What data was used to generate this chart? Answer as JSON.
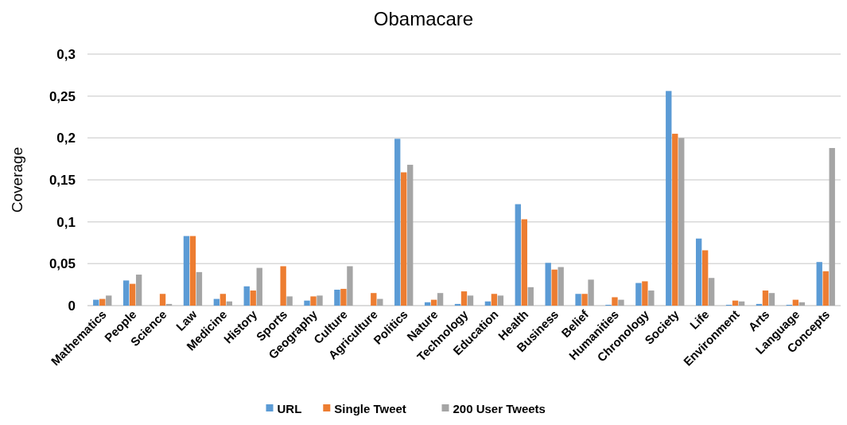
{
  "chart_data": {
    "type": "bar",
    "title": "Obamacare",
    "ylabel": "Coverage",
    "categories": [
      "Mathematics",
      "People",
      "Science",
      "Law",
      "Medicine",
      "History",
      "Sports",
      "Geography",
      "Culture",
      "Agriculture",
      "Politics",
      "Nature",
      "Technology",
      "Education",
      "Health",
      "Business",
      "Belief",
      "Humanities",
      "Chronology",
      "Society",
      "Life",
      "Environment",
      "Arts",
      "Language",
      "Concepts"
    ],
    "series": [
      {
        "name": "URL",
        "color": "#5b9bd5",
        "values": [
          0.007,
          0.03,
          0,
          0.083,
          0.008,
          0.023,
          0,
          0.006,
          0.019,
          0,
          0.199,
          0.004,
          0.002,
          0.005,
          0.121,
          0.051,
          0.014,
          0.001,
          0.027,
          0.256,
          0.08,
          0.001,
          0.002,
          0.001,
          0.052
        ]
      },
      {
        "name": "Single Tweet",
        "color": "#ed7d31",
        "values": [
          0.008,
          0.026,
          0.014,
          0.083,
          0.014,
          0.018,
          0.047,
          0.011,
          0.02,
          0.015,
          0.159,
          0.007,
          0.017,
          0.014,
          0.103,
          0.043,
          0.014,
          0.01,
          0.029,
          0.205,
          0.066,
          0.006,
          0.018,
          0.007,
          0.041
        ]
      },
      {
        "name": "200 User Tweets",
        "color": "#a5a5a5",
        "values": [
          0.012,
          0.037,
          0.002,
          0.04,
          0.005,
          0.045,
          0.011,
          0.012,
          0.047,
          0.008,
          0.168,
          0.015,
          0.012,
          0.012,
          0.022,
          0.046,
          0.031,
          0.007,
          0.018,
          0.2,
          0.033,
          0.005,
          0.015,
          0.004,
          0.188
        ]
      }
    ],
    "ylim": [
      0,
      0.3
    ],
    "yticks": [
      0,
      {
        "value": 0.05,
        "label": "0,05"
      },
      {
        "value": 0.1,
        "label": "0,1"
      },
      {
        "value": 0.15,
        "label": "0,15"
      },
      {
        "value": 0.2,
        "label": "0,2"
      },
      {
        "value": 0.25,
        "label": "0,25"
      },
      {
        "value": 0.3,
        "label": "0,3"
      }
    ],
    "grid": "y",
    "legend": "bottom"
  }
}
